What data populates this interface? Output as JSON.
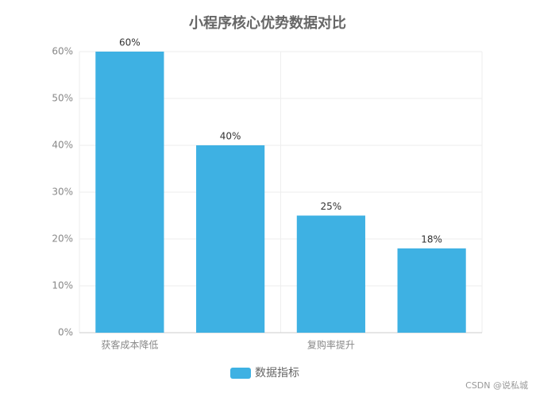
{
  "chart_data": {
    "type": "bar",
    "title": "小程序核心优势数据对比",
    "categories": [
      "获客成本降低",
      null,
      "复购率提升",
      null
    ],
    "series": [
      {
        "name": "数据指标",
        "color": "#3eb1e3",
        "values": [
          60,
          40,
          25,
          18
        ],
        "value_labels": [
          "60%",
          "40%",
          "25%",
          "18%"
        ]
      }
    ],
    "ylim": [
      0,
      60
    ],
    "yticks": [
      {
        "value": 0,
        "label": "0%"
      },
      {
        "value": 10,
        "label": "10%"
      },
      {
        "value": 20,
        "label": "20%"
      },
      {
        "value": 30,
        "label": "30%"
      },
      {
        "value": 40,
        "label": "40%"
      },
      {
        "value": 50,
        "label": "50%"
      },
      {
        "value": 60,
        "label": "60%"
      }
    ],
    "grid": true,
    "legend": "bottom"
  },
  "watermark": "CSDN @说私城"
}
